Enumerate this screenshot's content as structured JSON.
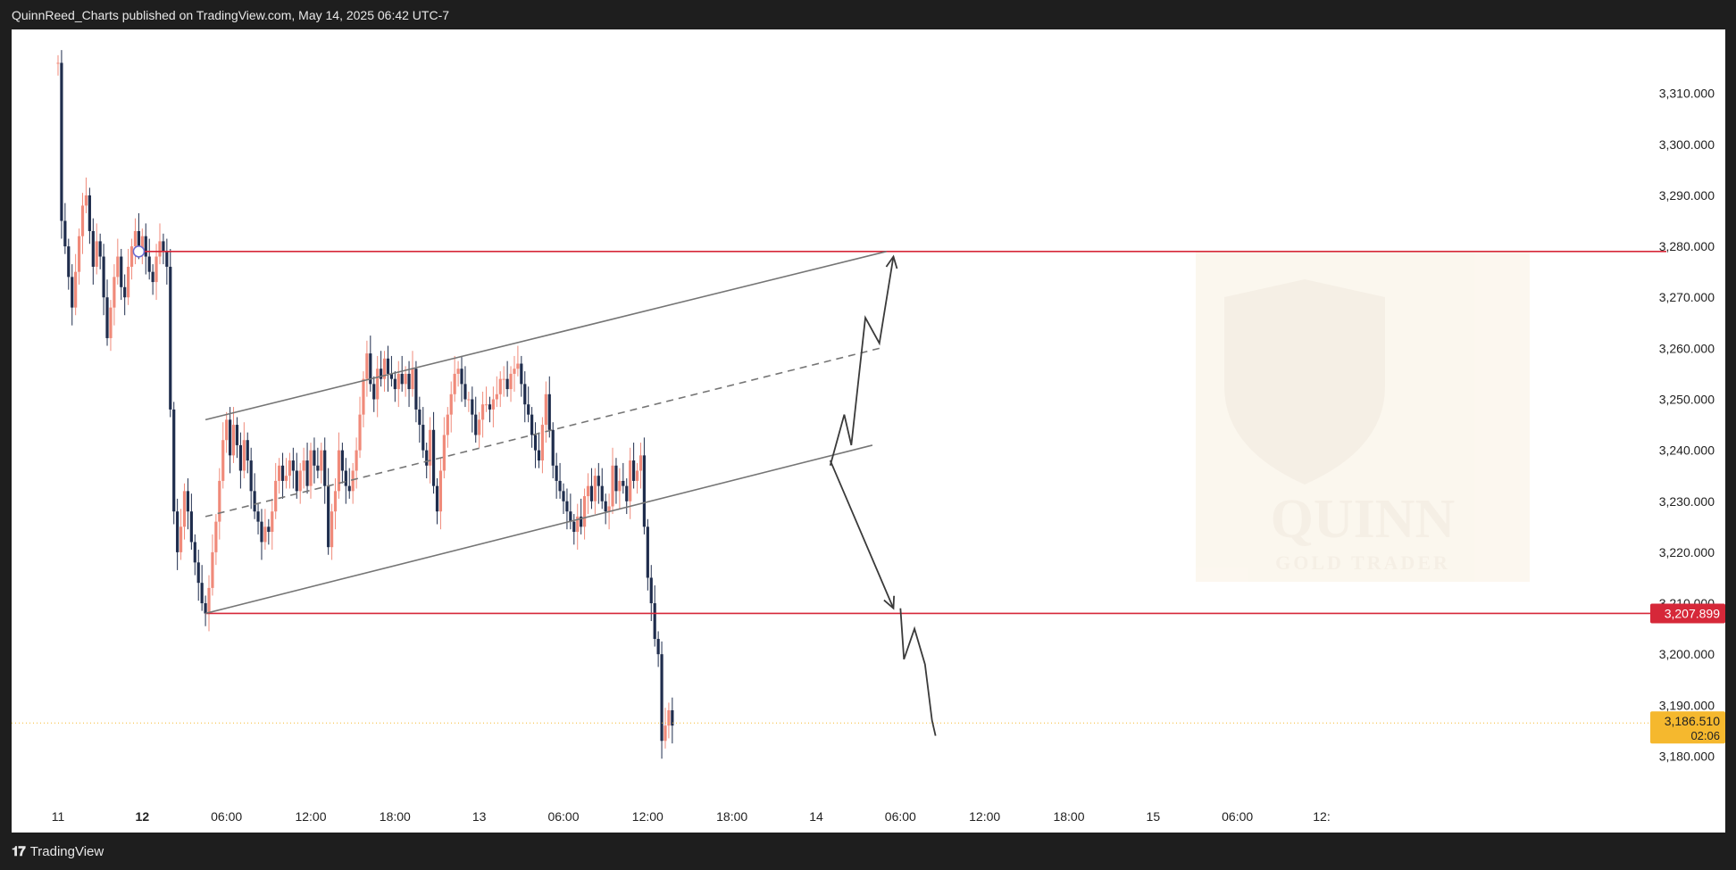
{
  "header": {
    "publish_text": "QuinnReed_Charts published on TradingView.com, May 14, 2025 06:42 UTC-7"
  },
  "footer": {
    "logo_text": "TradingView",
    "logo_icon": "tradingview-logo-icon"
  },
  "watermark": {
    "title": "QUINN",
    "subtitle": "GOLD TRADER",
    "icon": "trader-portrait-shield-emblem"
  },
  "colors": {
    "up": "#f08a7a",
    "down": "#1f2d4d",
    "level": "#d62839",
    "channel": "#757575",
    "current": "#f5b82e"
  },
  "chart_data": {
    "type": "candlestick",
    "ylim": [
      3175,
      3318
    ],
    "y_ticks": [
      3180,
      3190,
      3200,
      3210,
      3220,
      3230,
      3240,
      3250,
      3260,
      3270,
      3280,
      3290,
      3300,
      3310
    ],
    "y_tick_labels": [
      "3,180.000",
      "3,190.000",
      "3,200.000",
      "3,210.000",
      "3,220.000",
      "3,230.000",
      "3,240.000",
      "3,250.000",
      "3,260.000",
      "3,270.000",
      "3,280.000",
      "3,290.000",
      "3,300.000",
      "3,310.000"
    ],
    "x_range": [
      "2025-05-11T18:00",
      "2025-05-15T12:00"
    ],
    "x_ticks": [
      {
        "t": "2025-05-11T18:00",
        "label": "11",
        "bold": false
      },
      {
        "t": "2025-05-12T00:00",
        "label": "12",
        "bold": true
      },
      {
        "t": "2025-05-12T06:00",
        "label": "06:00",
        "bold": false
      },
      {
        "t": "2025-05-12T12:00",
        "label": "12:00",
        "bold": false
      },
      {
        "t": "2025-05-12T18:00",
        "label": "18:00",
        "bold": false
      },
      {
        "t": "2025-05-13T00:00",
        "label": "13",
        "bold": false
      },
      {
        "t": "2025-05-13T06:00",
        "label": "06:00",
        "bold": false
      },
      {
        "t": "2025-05-13T12:00",
        "label": "12:00",
        "bold": false
      },
      {
        "t": "2025-05-13T18:00",
        "label": "18:00",
        "bold": false
      },
      {
        "t": "2025-05-14T00:00",
        "label": "14",
        "bold": false
      },
      {
        "t": "2025-05-14T06:00",
        "label": "06:00",
        "bold": false
      },
      {
        "t": "2025-05-14T12:00",
        "label": "12:00",
        "bold": false
      },
      {
        "t": "2025-05-14T18:00",
        "label": "18:00",
        "bold": false
      },
      {
        "t": "2025-05-15T00:00",
        "label": "15",
        "bold": false
      },
      {
        "t": "2025-05-15T06:00",
        "label": "06:00",
        "bold": false
      },
      {
        "t": "2025-05-15T12:00",
        "label": "12:",
        "bold": false
      }
    ],
    "candles_start": "2025-05-11T18:00",
    "candle_minutes": 15,
    "closes": [
      3316,
      3285,
      3280,
      3274,
      3268,
      3275,
      3282,
      3288,
      3290,
      3283,
      3276,
      3281,
      3278,
      3270,
      3262,
      3268,
      3274,
      3278,
      3272,
      3270,
      3276,
      3280,
      3283,
      3279,
      3282,
      3278,
      3275,
      3273,
      3278,
      3281,
      3279,
      3276,
      3248,
      3228,
      3220,
      3225,
      3232,
      3228,
      3222,
      3218,
      3214,
      3210,
      3208,
      3213,
      3220,
      3226,
      3234,
      3242,
      3246,
      3239,
      3245,
      3241,
      3236,
      3242,
      3238,
      3232,
      3228,
      3226,
      3222,
      3225,
      3224,
      3228,
      3234,
      3237,
      3234,
      3235,
      3238,
      3236,
      3232,
      3236,
      3238,
      3233,
      3240,
      3237,
      3236,
      3240,
      3233,
      3221,
      3228,
      3232,
      3240,
      3236,
      3233,
      3232,
      3236,
      3240,
      3247,
      3254,
      3259,
      3253,
      3250,
      3256,
      3254,
      3258,
      3255,
      3254,
      3252,
      3255,
      3253,
      3255,
      3252,
      3256,
      3248,
      3245,
      3240,
      3237,
      3244,
      3233,
      3228,
      3236,
      3243,
      3247,
      3251,
      3255,
      3256,
      3253,
      3250,
      3250,
      3247,
      3243,
      3246,
      3249,
      3249,
      3248,
      3250,
      3251,
      3254,
      3254,
      3252,
      3255,
      3256,
      3257,
      3253,
      3249,
      3247,
      3243,
      3240,
      3238,
      3245,
      3251,
      3244,
      3237,
      3234,
      3232,
      3230,
      3228,
      3226,
      3224,
      3227,
      3225,
      3231,
      3233,
      3230,
      3235,
      3233,
      3230,
      3228,
      3229,
      3237,
      3232,
      3234,
      3233,
      3230,
      3238,
      3234,
      3236,
      3239,
      3225,
      3215,
      3210,
      3203,
      3200,
      3183,
      3186,
      3189,
      3186
    ],
    "levels": [
      {
        "name": "resistance",
        "value": 3279
      },
      {
        "name": "support",
        "value": 3208
      }
    ],
    "current_price": {
      "value": 3186.51,
      "label": "3,186.510",
      "countdown": "02:06"
    },
    "support_label": "3,207.899",
    "channel": {
      "upper": [
        {
          "t": "2025-05-12T04:30",
          "v": 3246
        },
        {
          "t": "2025-05-14T05:00",
          "v": 3279
        }
      ],
      "lower": [
        {
          "t": "2025-05-12T04:30",
          "v": 3208
        },
        {
          "t": "2025-05-14T04:00",
          "v": 3241
        }
      ],
      "middle": [
        {
          "t": "2025-05-12T04:30",
          "v": 3227
        },
        {
          "t": "2025-05-14T04:30",
          "v": 3260
        }
      ]
    },
    "projection_up": [
      {
        "t": "2025-05-14T01:00",
        "v": 3237
      },
      {
        "t": "2025-05-14T02:00",
        "v": 3247
      },
      {
        "t": "2025-05-14T02:30",
        "v": 3241
      },
      {
        "t": "2025-05-14T03:30",
        "v": 3266
      },
      {
        "t": "2025-05-14T04:30",
        "v": 3261
      },
      {
        "t": "2025-05-14T05:30",
        "v": 3278
      }
    ],
    "projection_down": [
      {
        "t": "2025-05-14T01:00",
        "v": 3238
      },
      {
        "t": "2025-05-14T05:30",
        "v": 3209
      }
    ],
    "projection_drop": [
      {
        "t": "2025-05-14T06:00",
        "v": 3209
      },
      {
        "t": "2025-05-14T06:15",
        "v": 3199
      },
      {
        "t": "2025-05-14T07:00",
        "v": 3205
      },
      {
        "t": "2025-05-14T07:45",
        "v": 3198
      },
      {
        "t": "2025-05-14T08:15",
        "v": 3187
      },
      {
        "t": "2025-05-14T08:30",
        "v": 3184
      }
    ],
    "marker": {
      "t": "2025-05-11T23:45",
      "v": 3279
    }
  }
}
